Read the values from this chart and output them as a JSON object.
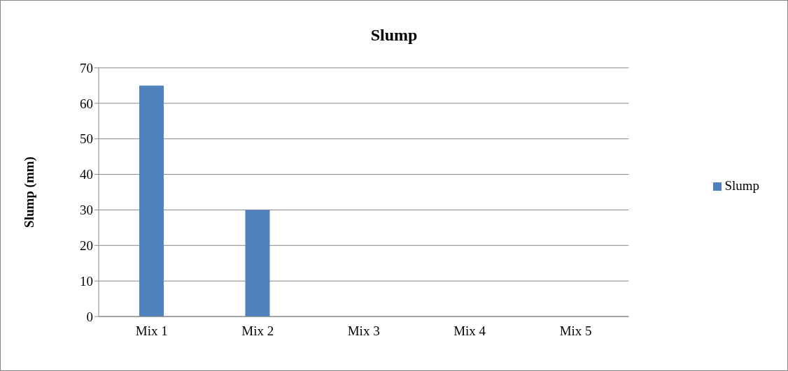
{
  "chart_data": {
    "type": "bar",
    "title": "Slump",
    "ylabel": "Slump (mm)",
    "categories": [
      "Mix 1",
      "Mix 2",
      "Mix 3",
      "Mix 4",
      "Mix 5"
    ],
    "series": [
      {
        "name": "Slump",
        "color": "#4f81bd",
        "values": [
          65,
          30,
          0,
          0,
          0
        ]
      }
    ],
    "ylim": [
      0,
      70
    ],
    "yticks": [
      0,
      10,
      20,
      30,
      40,
      50,
      60,
      70
    ],
    "grid": "y",
    "legend": "right"
  }
}
